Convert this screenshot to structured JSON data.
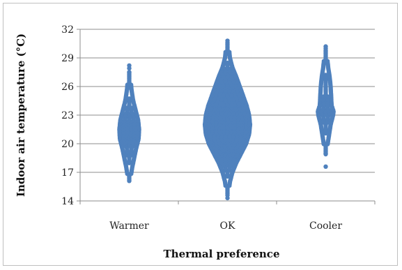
{
  "chart_data": {
    "type": "scatter",
    "xlabel": "Thermal preference",
    "ylabel": "Indoor air temperature (°C)",
    "categories": [
      "Warmer",
      "OK",
      "Cooler"
    ],
    "ylim": [
      14,
      32
    ],
    "yticks": [
      14,
      17,
      20,
      23,
      26,
      29,
      32
    ],
    "grid": "horizontal",
    "marker_color": "#4f81bd",
    "series": [
      {
        "category": "Warmer",
        "profile": [
          {
            "y": 16.2,
            "w": 0.02
          },
          {
            "y": 17.5,
            "w": 0.06
          },
          {
            "y": 18.5,
            "w": 0.1
          },
          {
            "y": 19.5,
            "w": 0.14
          },
          {
            "y": 20.5,
            "w": 0.19
          },
          {
            "y": 21.5,
            "w": 0.2
          },
          {
            "y": 22.5,
            "w": 0.18
          },
          {
            "y": 23.5,
            "w": 0.13
          },
          {
            "y": 24.5,
            "w": 0.08
          },
          {
            "y": 25.5,
            "w": 0.05
          },
          {
            "y": 26.5,
            "w": 0.03
          },
          {
            "y": 27.5,
            "w": 0.02
          }
        ],
        "outliers": [
          16.1,
          27.5,
          27.9,
          28.2
        ]
      },
      {
        "category": "OK",
        "profile": [
          {
            "y": 14.8,
            "w": 0.02
          },
          {
            "y": 16.0,
            "w": 0.05
          },
          {
            "y": 17.0,
            "w": 0.1
          },
          {
            "y": 18.0,
            "w": 0.18
          },
          {
            "y": 19.0,
            "w": 0.28
          },
          {
            "y": 20.0,
            "w": 0.38
          },
          {
            "y": 21.0,
            "w": 0.44
          },
          {
            "y": 22.0,
            "w": 0.46
          },
          {
            "y": 23.0,
            "w": 0.44
          },
          {
            "y": 24.0,
            "w": 0.39
          },
          {
            "y": 25.0,
            "w": 0.32
          },
          {
            "y": 26.0,
            "w": 0.25
          },
          {
            "y": 27.0,
            "w": 0.18
          },
          {
            "y": 28.0,
            "w": 0.1
          },
          {
            "y": 29.0,
            "w": 0.05
          },
          {
            "y": 30.0,
            "w": 0.03
          },
          {
            "y": 30.6,
            "w": 0.015
          }
        ],
        "outliers": [
          14.3,
          14.6,
          30.8
        ]
      },
      {
        "category": "Cooler",
        "profile": [
          {
            "y": 19.0,
            "w": 0.02
          },
          {
            "y": 20.0,
            "w": 0.04
          },
          {
            "y": 21.0,
            "w": 0.07
          },
          {
            "y": 22.0,
            "w": 0.1
          },
          {
            "y": 23.0,
            "w": 0.15
          },
          {
            "y": 23.4,
            "w": 0.16
          },
          {
            "y": 24.0,
            "w": 0.12
          },
          {
            "y": 25.0,
            "w": 0.11
          },
          {
            "y": 26.0,
            "w": 0.1
          },
          {
            "y": 27.0,
            "w": 0.08
          },
          {
            "y": 28.0,
            "w": 0.05
          },
          {
            "y": 29.0,
            "w": 0.03
          },
          {
            "y": 29.8,
            "w": 0.02
          }
        ],
        "outliers": [
          17.6,
          18.9,
          30.0,
          30.2
        ]
      }
    ]
  }
}
